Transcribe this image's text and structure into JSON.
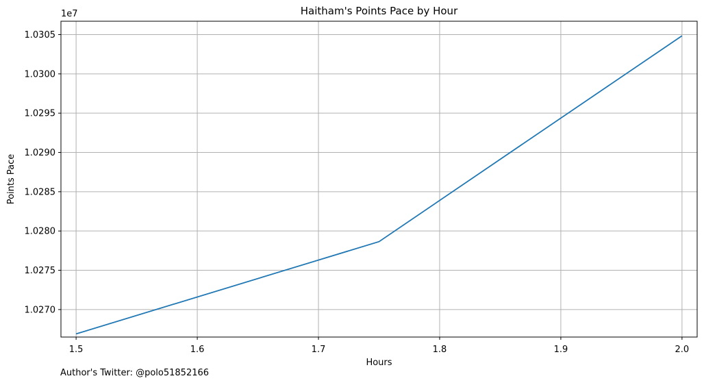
{
  "chart_data": {
    "type": "line",
    "title": "Haitham's Points Pace by Hour",
    "xlabel": "Hours",
    "ylabel": "Points Pace",
    "y_offset_label": "1e7",
    "x_ticks": [
      "1.5",
      "1.6",
      "1.7",
      "1.8",
      "1.9",
      "2.0"
    ],
    "y_ticks": [
      "1.0270",
      "1.0275",
      "1.0280",
      "1.0285",
      "1.0290",
      "1.0295",
      "1.0300",
      "1.0305"
    ],
    "xlim": [
      1.4875,
      2.0125
    ],
    "ylim": [
      10266500,
      10306700
    ],
    "grid": true,
    "series": [
      {
        "color": "#1f77b4",
        "x": [
          1.5,
          1.75,
          2.0
        ],
        "y": [
          10266900,
          10278650,
          10304850
        ]
      }
    ]
  },
  "footer": {
    "author": "Author's Twitter: @polo51852166"
  }
}
